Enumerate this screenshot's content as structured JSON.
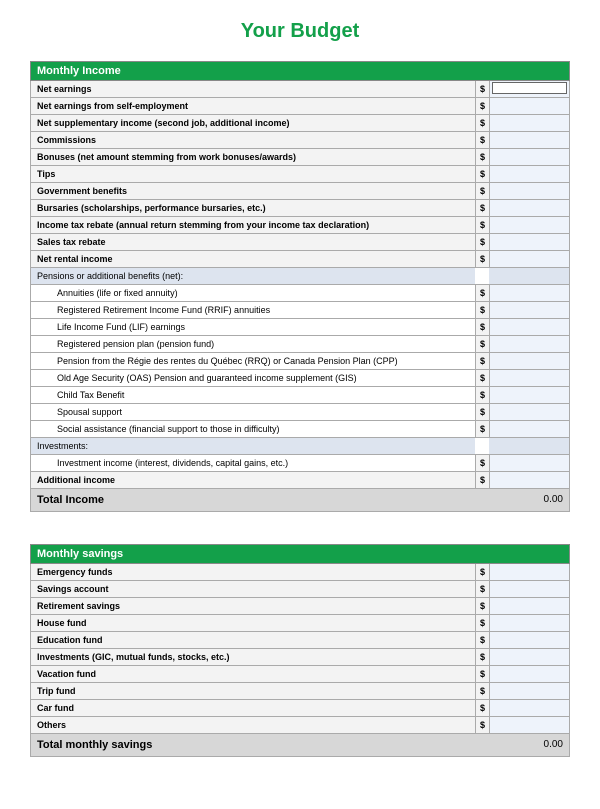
{
  "page_title": "Your Budget",
  "accent_color": "#13a04a",
  "income": {
    "header": "Monthly Income",
    "rows": [
      {
        "label": "Net earnings",
        "type": "bold",
        "input": true,
        "boxed": true
      },
      {
        "label": "Net earnings from self-employment",
        "type": "bold",
        "input": true
      },
      {
        "label": "Net supplementary income (second job, additional income)",
        "type": "bold",
        "input": true
      },
      {
        "label": "Commissions",
        "type": "bold",
        "input": true
      },
      {
        "label": "Bonuses (net amount stemming from work bonuses/awards)",
        "type": "bold",
        "input": true
      },
      {
        "label": "Tips",
        "type": "bold",
        "input": true
      },
      {
        "label": "Government benefits",
        "type": "bold",
        "input": true
      },
      {
        "label": "Bursaries (scholarships, performance bursaries, etc.)",
        "type": "bold",
        "input": true
      },
      {
        "label": "Income tax rebate (annual return stemming from your income tax declaration)",
        "type": "bold",
        "input": true
      },
      {
        "label": "Sales tax rebate",
        "type": "bold",
        "input": true
      },
      {
        "label": "Net rental income",
        "type": "bold",
        "input": true
      },
      {
        "label": "Pensions or additional benefits (net):",
        "type": "subhead"
      },
      {
        "label": "Annuities (life or fixed annuity)",
        "type": "sub",
        "input": true
      },
      {
        "label": "Registered Retirement Income Fund (RRIF) annuities",
        "type": "sub",
        "input": true
      },
      {
        "label": "Life Income Fund (LIF) earnings",
        "type": "sub",
        "input": true
      },
      {
        "label": "Registered pension plan (pension fund)",
        "type": "sub",
        "input": true
      },
      {
        "label": "Pension from the Régie des rentes du Québec  (RRQ) or Canada Pension Plan (CPP)",
        "type": "sub",
        "input": true
      },
      {
        "label": "Old Age Security (OAS) Pension and guaranteed income supplement (GIS)",
        "type": "sub",
        "input": true
      },
      {
        "label": "Child Tax Benefit",
        "type": "sub",
        "input": true
      },
      {
        "label": "Spousal support",
        "type": "sub",
        "input": true
      },
      {
        "label": "Social assistance (financial support to those in difficulty)",
        "type": "sub",
        "input": true
      },
      {
        "label": "Investments:",
        "type": "subhead"
      },
      {
        "label": "Investment income (interest, dividends, capital gains, etc.)",
        "type": "sub",
        "input": true
      },
      {
        "label": "Additional income",
        "type": "bold",
        "input": true
      }
    ],
    "total_label": "Total Income",
    "total_value": "0.00"
  },
  "savings": {
    "header": "Monthly savings",
    "rows": [
      {
        "label": "Emergency funds",
        "type": "bold",
        "input": true
      },
      {
        "label": "Savings account",
        "type": "bold",
        "input": true
      },
      {
        "label": "Retirement savings",
        "type": "bold",
        "input": true
      },
      {
        "label": "House fund",
        "type": "bold",
        "input": true
      },
      {
        "label": "Education fund",
        "type": "bold",
        "input": true
      },
      {
        "label": "Investments (GIC, mutual funds, stocks, etc.)",
        "type": "bold",
        "input": true
      },
      {
        "label": "Vacation fund",
        "type": "bold",
        "input": true
      },
      {
        "label": "Trip fund",
        "type": "bold",
        "input": true
      },
      {
        "label": "Car fund",
        "type": "bold",
        "input": true
      },
      {
        "label": "Others",
        "type": "bold",
        "input": true
      }
    ],
    "total_label": "Total monthly savings",
    "total_value": "0.00"
  },
  "currency_symbol": "$"
}
